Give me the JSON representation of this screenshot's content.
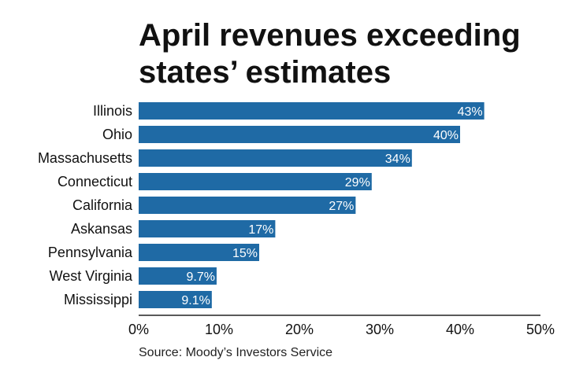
{
  "chart_data": {
    "type": "bar",
    "orientation": "horizontal",
    "title": "April revenues exceeding states’ estimates",
    "categories": [
      "Illinois",
      "Ohio",
      "Massachusetts",
      "Connecticut",
      "California",
      "Askansas",
      "Pennsylvania",
      "West Virginia",
      "Mississippi"
    ],
    "values": [
      43,
      40,
      34,
      29,
      27,
      17,
      15,
      9.7,
      9.1
    ],
    "value_labels": [
      "43%",
      "40%",
      "34%",
      "29%",
      "27%",
      "17%",
      "15%",
      "9.7%",
      "9.1%"
    ],
    "xlim": [
      0,
      50
    ],
    "xticks": [
      0,
      10,
      20,
      30,
      40,
      50
    ],
    "xtick_labels": [
      "0%",
      "10%",
      "20%",
      "30%",
      "40%",
      "50%"
    ],
    "xlabel": "",
    "ylabel": "",
    "grid": false,
    "bar_color": "#1f6aa5",
    "source": "Source: Moody’s Investors Service"
  }
}
